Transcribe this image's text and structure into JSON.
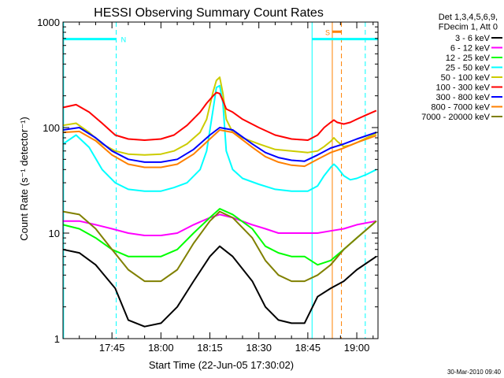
{
  "chart_data": {
    "type": "line",
    "title": "HESSI Observing Summary Count Rates",
    "xlabel": "Start Time (22-Jun-05 17:30:02)",
    "ylabel": "Count Rate (s⁻¹ detector⁻¹)",
    "yscale": "log",
    "ylim": [
      1,
      1000
    ],
    "xlim_minutes": [
      0,
      96.5
    ],
    "x_tick_labels": [
      {
        "minute": 15,
        "label": "17:45"
      },
      {
        "minute": 30,
        "label": "18:00"
      },
      {
        "minute": 45,
        "label": "18:15"
      },
      {
        "minute": 60,
        "label": "18:30"
      },
      {
        "minute": 75,
        "label": "18:45"
      },
      {
        "minute": 90,
        "label": "19:00"
      }
    ],
    "y_tick_labels": [
      {
        "value": 1,
        "label": "1"
      },
      {
        "value": 10,
        "label": "10"
      },
      {
        "value": 100,
        "label": "100"
      },
      {
        "value": 1000,
        "label": "1000"
      }
    ],
    "legend_header": [
      "Det 1,3,4,5,6,9,",
      "FDecim 1, Att 0"
    ],
    "legend_position": "right",
    "x_unit": "minutes after 17:30:02",
    "series": [
      {
        "name": "3 - 6 keV",
        "color": "#000000",
        "x": [
          0,
          5,
          10,
          16,
          20,
          25,
          30,
          35,
          40,
          45,
          48,
          52,
          58,
          62,
          66,
          70,
          74,
          78,
          82,
          86,
          90,
          96
        ],
        "values": [
          7,
          6.5,
          5,
          3,
          1.5,
          1.3,
          1.4,
          2,
          3.5,
          6,
          7.5,
          6,
          3.5,
          2,
          1.5,
          1.4,
          1.4,
          2.5,
          3,
          3.5,
          4.5,
          6
        ]
      },
      {
        "name": "6 - 12 keV",
        "color": "#ff00ff",
        "x": [
          0,
          5,
          10,
          15,
          20,
          25,
          30,
          35,
          40,
          45,
          48,
          52,
          58,
          62,
          66,
          70,
          74,
          78,
          82,
          86,
          90,
          96
        ],
        "values": [
          13,
          13,
          12,
          11,
          10,
          9.5,
          9.5,
          10,
          12,
          14,
          15,
          14,
          12,
          11,
          10,
          10,
          10,
          10,
          10.5,
          11,
          12,
          13
        ]
      },
      {
        "name": "12 - 25 keV",
        "color": "#00ff00",
        "x": [
          0,
          5,
          10,
          15,
          20,
          25,
          30,
          35,
          40,
          45,
          48,
          52,
          58,
          62,
          66,
          70,
          74,
          78,
          82,
          86,
          90,
          96
        ],
        "values": [
          12,
          11,
          9,
          7,
          6,
          6,
          6,
          7,
          10,
          14,
          17,
          15,
          11,
          7.5,
          6.5,
          6,
          6,
          5,
          5.5,
          7,
          9,
          13
        ]
      },
      {
        "name": "25 - 50 keV",
        "color": "#00ffff",
        "x": [
          0,
          4,
          8,
          12,
          16,
          20,
          25,
          30,
          34,
          38,
          42,
          44,
          46,
          47,
          48,
          49,
          50,
          52,
          55,
          60,
          65,
          70,
          75,
          78,
          80,
          82,
          83,
          84,
          86,
          88,
          90,
          93,
          96
        ],
        "values": [
          70,
          85,
          65,
          40,
          30,
          26,
          25,
          25,
          27,
          30,
          40,
          60,
          150,
          240,
          250,
          170,
          60,
          40,
          33,
          29,
          26,
          25,
          25,
          28,
          35,
          42,
          45,
          42,
          35,
          32,
          33,
          36,
          40
        ]
      },
      {
        "name": "50 - 100 keV",
        "color": "#cccc00",
        "x": [
          0,
          4,
          8,
          12,
          16,
          20,
          25,
          30,
          34,
          38,
          42,
          44,
          46,
          47,
          48,
          49,
          50,
          52,
          55,
          60,
          65,
          70,
          75,
          78,
          80,
          82,
          83,
          84,
          86,
          88,
          90,
          93,
          96
        ],
        "values": [
          105,
          110,
          90,
          70,
          60,
          56,
          55,
          56,
          60,
          70,
          90,
          120,
          220,
          280,
          300,
          210,
          120,
          90,
          80,
          70,
          62,
          60,
          58,
          60,
          66,
          74,
          80,
          74,
          66,
          68,
          72,
          80,
          88
        ]
      },
      {
        "name": "100 - 300 keV",
        "color": "#ff0000",
        "x": [
          0,
          4,
          8,
          12,
          16,
          20,
          25,
          30,
          34,
          38,
          42,
          44,
          46,
          47,
          48,
          49,
          50,
          52,
          55,
          60,
          65,
          70,
          75,
          78,
          80,
          82,
          83,
          84,
          86,
          88,
          90,
          93,
          96
        ],
        "values": [
          155,
          165,
          140,
          110,
          85,
          78,
          76,
          78,
          85,
          105,
          140,
          170,
          200,
          215,
          210,
          180,
          150,
          140,
          120,
          100,
          85,
          78,
          76,
          85,
          100,
          112,
          118,
          112,
          108,
          112,
          120,
          132,
          145
        ]
      },
      {
        "name": "300 - 800 keV",
        "color": "#0000ff",
        "x": [
          0,
          5,
          10,
          15,
          20,
          25,
          30,
          35,
          40,
          45,
          48,
          52,
          58,
          62,
          66,
          70,
          74,
          78,
          82,
          86,
          90,
          96
        ],
        "values": [
          95,
          100,
          80,
          60,
          50,
          47,
          47,
          50,
          62,
          85,
          100,
          95,
          70,
          58,
          52,
          49,
          48,
          55,
          64,
          70,
          78,
          90
        ]
      },
      {
        "name": "800 - 7000 keV",
        "color": "#ff8000",
        "x": [
          0,
          5,
          10,
          15,
          20,
          25,
          30,
          35,
          40,
          45,
          48,
          52,
          58,
          62,
          66,
          70,
          74,
          78,
          82,
          86,
          90,
          96
        ],
        "values": [
          90,
          92,
          75,
          55,
          45,
          42,
          42,
          45,
          56,
          78,
          95,
          90,
          65,
          53,
          47,
          44,
          43,
          50,
          58,
          64,
          72,
          84
        ]
      },
      {
        "name": "7000 - 20000 keV",
        "color": "#808000",
        "x": [
          0,
          5,
          10,
          15,
          20,
          25,
          30,
          35,
          40,
          45,
          48,
          52,
          58,
          62,
          66,
          70,
          74,
          78,
          82,
          86,
          90,
          96
        ],
        "values": [
          16,
          15,
          11,
          7,
          4.5,
          3.5,
          3.5,
          4.5,
          8,
          13,
          16,
          14,
          9,
          5.5,
          4,
          3.5,
          3.5,
          4,
          5,
          7,
          9,
          13
        ]
      }
    ],
    "vertical_markers": [
      {
        "minute": 0.2,
        "color": "#00ffff",
        "style": "solid"
      },
      {
        "minute": 16.3,
        "color": "#00ffff",
        "style": "dashed"
      },
      {
        "minute": 76.3,
        "color": "#00ffff",
        "style": "solid"
      },
      {
        "minute": 92.6,
        "color": "#00ffff",
        "style": "dashed"
      },
      {
        "minute": 82.5,
        "color": "#ff8000",
        "style": "solid"
      },
      {
        "minute": 85.3,
        "color": "#ff8000",
        "style": "dashed"
      }
    ],
    "night_bars": [
      {
        "from": 0.2,
        "to": 16.3,
        "label": "N",
        "color": "#00ffff",
        "level": 690
      },
      {
        "from": 76.3,
        "to": 96.5,
        "label": "",
        "color": "#00ffff",
        "level": 690
      }
    ],
    "saa_bars": [
      {
        "from": 82.5,
        "to": 85.3,
        "label": "S",
        "color": "#ff8000",
        "level": 810
      }
    ]
  },
  "footer_timestamp": "30-Mar-2010 09:40"
}
